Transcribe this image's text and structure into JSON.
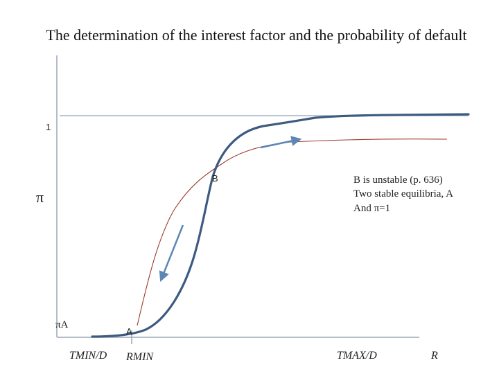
{
  "title": "The determination of the interest factor and the probability of default",
  "labels": {
    "y_one": "1",
    "y_axis": "π",
    "point_b": "B",
    "point_a": "A",
    "pi_a": "πA",
    "x_tmin": "TMIN/D",
    "x_rmin": "RMIN",
    "x_tmax": "TMAX/D",
    "x_r": "R"
  },
  "note": {
    "line1": "B is unstable (p. 636)",
    "line2": "Two stable equilibria, A",
    "line3": "And π=1"
  },
  "colors": {
    "thick_curve": "#3d5a80",
    "thin_curve": "#9b3b2c",
    "axis": "#9aa6b8",
    "arrow": "#5b86b5",
    "reference_line": "#8fa3b6"
  }
}
